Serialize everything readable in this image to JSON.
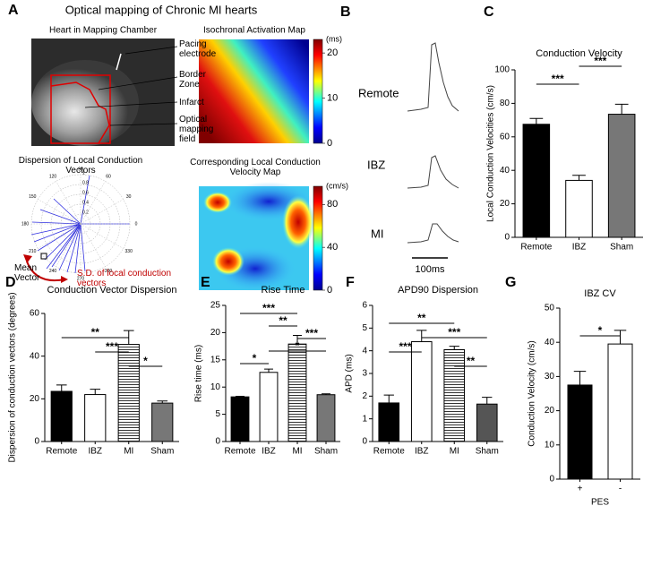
{
  "figure": {
    "title": "Optical mapping of Chronic MI hearts"
  },
  "panel_a": {
    "letter": "A",
    "photo_title": "Heart in Mapping Chamber",
    "callouts": [
      "Pacing electrode",
      "Border Zone",
      "Infarct",
      "Optical mapping field"
    ],
    "activation_map": {
      "title": "Isochronal Activation Map",
      "unit": "(ms)",
      "lim": [
        0,
        23
      ],
      "ticks": [
        0,
        10,
        20
      ]
    },
    "velocity_map": {
      "title": "Corresponding Local Conduction Velocity Map",
      "unit": "(cm/s)",
      "lim": [
        0,
        97
      ],
      "ticks": [
        0,
        40,
        80
      ]
    },
    "polar": {
      "title": "Dispersion of Local Conduction Vectors",
      "angles": [
        0,
        30,
        60,
        90,
        120,
        150,
        180,
        210,
        240,
        270,
        300,
        330
      ],
      "radii": [
        0.2,
        0.4,
        0.6,
        0.8,
        1
      ],
      "mean_vector": "Mean Vector",
      "sd_label": "S.D. of local conduction vectors"
    }
  },
  "panel_b": {
    "letter": "B",
    "traces": [
      "Remote",
      "IBZ",
      "MI"
    ],
    "scale_bar": "100ms"
  },
  "chart_data": [
    {
      "type": "bar",
      "panel": "C",
      "title": "Conduction Velocity",
      "y_label": "Local Conduction Velocities (cm/s)",
      "categories": [
        "Remote",
        "IBZ",
        "Sham"
      ],
      "values": [
        67.5,
        34,
        73.5
      ],
      "errors": [
        3.5,
        3,
        6
      ],
      "colors": [
        "#000000",
        "#ffffff",
        "#777777"
      ],
      "hatched": [
        false,
        false,
        false
      ],
      "ylim": [
        0,
        100
      ],
      "yticks": [
        0,
        20,
        40,
        60,
        80,
        100
      ],
      "brackets": [
        {
          "from": 1,
          "to": 2,
          "label": "***"
        },
        {
          "from": 0,
          "to": 1,
          "label": "***"
        }
      ]
    },
    {
      "type": "bar",
      "panel": "D",
      "title": "Conduction Vector Dispersion",
      "y_label": "Dispersion of conduction vectors (degrees)",
      "categories": [
        "Remote",
        "IBZ",
        "MI",
        "Sham"
      ],
      "values": [
        23.5,
        22,
        45.5,
        18
      ],
      "errors": [
        3,
        2.5,
        6.5,
        1
      ],
      "colors": [
        "#000000",
        "#ffffff",
        "#ffffff",
        "#777777"
      ],
      "hatched": [
        false,
        false,
        true,
        false
      ],
      "ylim": [
        0,
        60
      ],
      "yticks": [
        0,
        20,
        40,
        60
      ],
      "brackets": [
        {
          "from": 0,
          "to": 2,
          "label": "**"
        },
        {
          "from": 1,
          "to": 2,
          "label": "***"
        },
        {
          "from": 2,
          "to": 3,
          "label": "*"
        }
      ]
    },
    {
      "type": "bar",
      "panel": "E",
      "title": "Rise Time",
      "y_label": "Rise time (ms)",
      "categories": [
        "Remote",
        "IBZ",
        "MI",
        "Sham"
      ],
      "values": [
        8.2,
        12.7,
        17.9,
        8.6
      ],
      "errors": [
        0.1,
        0.6,
        1.6,
        0.15
      ],
      "colors": [
        "#000000",
        "#ffffff",
        "#ffffff",
        "#777777"
      ],
      "hatched": [
        false,
        false,
        true,
        false
      ],
      "ylim": [
        0,
        25
      ],
      "yticks": [
        0,
        5,
        10,
        15,
        20,
        25
      ],
      "brackets": [
        {
          "from": 0,
          "to": 2,
          "label": "***"
        },
        {
          "from": 1,
          "to": 2,
          "label": "**"
        },
        {
          "from": 2,
          "to": 3,
          "label": "***"
        },
        {
          "from": 1,
          "to": 3,
          "label": "*"
        },
        {
          "from": 0,
          "to": 1,
          "label": "*"
        }
      ]
    },
    {
      "type": "bar",
      "panel": "F",
      "title": "APD90 Dispersion",
      "y_label": "APD (ms)",
      "categories": [
        "Remote",
        "IBZ",
        "MI",
        "Sham"
      ],
      "values": [
        1.7,
        4.4,
        4.05,
        1.65
      ],
      "errors": [
        0.35,
        0.5,
        0.15,
        0.3
      ],
      "colors": [
        "#000000",
        "#ffffff",
        "#ffffff",
        "#555555"
      ],
      "hatched": [
        false,
        false,
        true,
        false
      ],
      "ylim": [
        0,
        6
      ],
      "yticks": [
        0,
        1,
        2,
        3,
        4,
        5,
        6
      ],
      "brackets": [
        {
          "from": 0,
          "to": 2,
          "label": "**"
        },
        {
          "from": 1,
          "to": 3,
          "label": "***"
        },
        {
          "from": 0,
          "to": 1,
          "label": "***"
        },
        {
          "from": 2,
          "to": 3,
          "label": "**"
        }
      ]
    },
    {
      "type": "bar",
      "panel": "G",
      "title": "IBZ CV",
      "y_label": "Conduction Velocity (cm/s)",
      "x_label": "PES",
      "categories": [
        "+",
        "-"
      ],
      "values": [
        27.5,
        39.5
      ],
      "errors": [
        4,
        4
      ],
      "colors": [
        "#000000",
        "#ffffff"
      ],
      "hatched": [
        false,
        false
      ],
      "ylim": [
        0,
        50
      ],
      "yticks": [
        0,
        10,
        20,
        30,
        40,
        50
      ],
      "brackets": [
        {
          "from": 0,
          "to": 1,
          "label": "*"
        }
      ]
    }
  ]
}
